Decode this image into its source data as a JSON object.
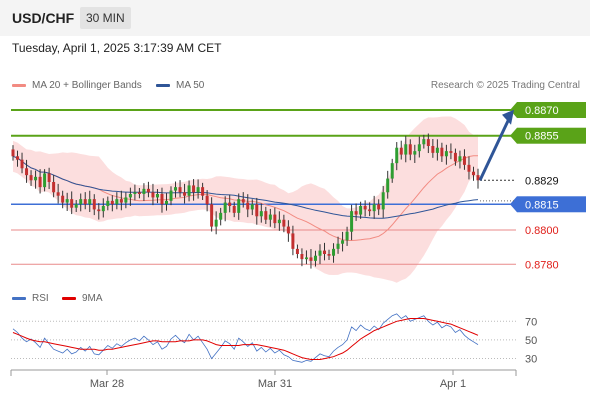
{
  "header": {
    "symbol": "USD/CHF",
    "timeframe": "30 MIN",
    "datetime": "Tuesday, April 1, 2025 3:17:39 AM CET"
  },
  "legend": {
    "ma20": {
      "label": "MA 20 + Bollinger Bands",
      "color": "#f28b82"
    },
    "ma50": {
      "label": "MA 50",
      "color": "#2f5597"
    },
    "attribution": "Research © 2025 Trading Central"
  },
  "rsi_legend": {
    "rsi": {
      "label": "RSI",
      "color": "#4472c4"
    },
    "ma9": {
      "label": "9MA",
      "color": "#e00000"
    }
  },
  "colors": {
    "green": "#5aa318",
    "blue": "#3d6fd6",
    "red": "#e88a8a",
    "band": "#fbd3d3",
    "up": "#2e9d31",
    "down": "#c23030",
    "arrow": "#2f5597"
  },
  "chart_data": [
    {
      "type": "candlestick",
      "title": "",
      "x_ticks": [
        "Mar 28",
        "Mar 31",
        "Apr 1"
      ],
      "ylim": [
        0.8772,
        0.8877
      ],
      "price_levels": [
        {
          "value": 0.887,
          "label": "0.8870",
          "style": "resistance"
        },
        {
          "value": 0.8855,
          "label": "0.8855",
          "style": "resistance"
        },
        {
          "value": 0.8829,
          "label": "0.8829",
          "style": "current"
        },
        {
          "value": 0.8815,
          "label": "0.8815",
          "style": "pivot"
        },
        {
          "value": 0.88,
          "label": "0.8800",
          "style": "support"
        },
        {
          "value": 0.878,
          "label": "0.8780",
          "style": "support"
        }
      ],
      "closes": [
        0.8843,
        0.8841,
        0.8836,
        0.8832,
        0.8829,
        0.8831,
        0.8825,
        0.8833,
        0.8828,
        0.8822,
        0.882,
        0.8816,
        0.8818,
        0.8813,
        0.8815,
        0.8818,
        0.8815,
        0.8818,
        0.8812,
        0.8811,
        0.8814,
        0.8817,
        0.8815,
        0.8818,
        0.8816,
        0.8819,
        0.8821,
        0.8822,
        0.8821,
        0.8824,
        0.8822,
        0.8819,
        0.8821,
        0.8815,
        0.8817,
        0.8823,
        0.8825,
        0.8822,
        0.882,
        0.8826,
        0.8822,
        0.8825,
        0.882,
        0.8815,
        0.8802,
        0.8806,
        0.881,
        0.8816,
        0.8814,
        0.881,
        0.8818,
        0.8816,
        0.8812,
        0.8815,
        0.8808,
        0.8811,
        0.8806,
        0.8809,
        0.8804,
        0.8806,
        0.8802,
        0.8798,
        0.8789,
        0.8786,
        0.8783,
        0.8784,
        0.8782,
        0.8785,
        0.8788,
        0.8786,
        0.8785,
        0.8789,
        0.8792,
        0.8794,
        0.8799,
        0.8811,
        0.8809,
        0.8814,
        0.8812,
        0.8811,
        0.8815,
        0.8812,
        0.8822,
        0.883,
        0.8839,
        0.8848,
        0.8844,
        0.885,
        0.8844,
        0.8846,
        0.885,
        0.8853,
        0.8849,
        0.8845,
        0.8848,
        0.8843,
        0.8846,
        0.8845,
        0.884,
        0.8843,
        0.8838,
        0.8834,
        0.8832,
        0.8829
      ],
      "ma20_y_range_note": "",
      "indicators": [
        "MA 20",
        "Bollinger Bands",
        "MA 50"
      ]
    },
    {
      "type": "line",
      "title": "",
      "ylim": [
        22,
        80
      ],
      "y_ticks": [
        30,
        50,
        70
      ],
      "series": [
        {
          "name": "RSI",
          "values": [
            62,
            58,
            52,
            48,
            51,
            47,
            42,
            52,
            46,
            40,
            38,
            36,
            40,
            35,
            37,
            42,
            38,
            43,
            35,
            34,
            39,
            44,
            41,
            46,
            43,
            47,
            50,
            52,
            49,
            54,
            50,
            45,
            48,
            40,
            43,
            51,
            55,
            50,
            47,
            56,
            50,
            54,
            47,
            40,
            30,
            36,
            42,
            49,
            46,
            40,
            52,
            48,
            43,
            47,
            38,
            42,
            37,
            41,
            36,
            39,
            34,
            32,
            28,
            27,
            26,
            28,
            27,
            31,
            35,
            33,
            32,
            38,
            42,
            45,
            50,
            64,
            60,
            66,
            62,
            60,
            65,
            61,
            68,
            72,
            76,
            78,
            73,
            76,
            70,
            72,
            74,
            76,
            70,
            66,
            69,
            63,
            66,
            64,
            58,
            61,
            55,
            51,
            48,
            45
          ]
        },
        {
          "name": "9MA",
          "values": [
            58,
            56,
            54,
            52,
            50,
            49,
            48,
            48,
            47,
            46,
            45,
            44,
            43,
            42,
            41,
            40,
            40,
            40,
            40,
            39,
            39,
            40,
            40,
            41,
            42,
            43,
            44,
            45,
            46,
            47,
            48,
            49,
            49,
            48,
            48,
            48,
            48,
            49,
            49,
            49,
            50,
            50,
            50,
            49,
            47,
            45,
            44,
            44,
            44,
            44,
            44,
            45,
            45,
            45,
            45,
            44,
            43,
            42,
            41,
            40,
            39,
            37,
            35,
            33,
            31,
            30,
            29,
            29,
            29,
            30,
            31,
            32,
            34,
            36,
            39,
            43,
            47,
            51,
            54,
            57,
            60,
            62,
            64,
            66,
            68,
            70,
            71,
            72,
            73,
            73,
            73,
            73,
            72,
            71,
            70,
            69,
            68,
            67,
            65,
            63,
            61,
            59,
            57,
            55
          ]
        }
      ]
    }
  ]
}
